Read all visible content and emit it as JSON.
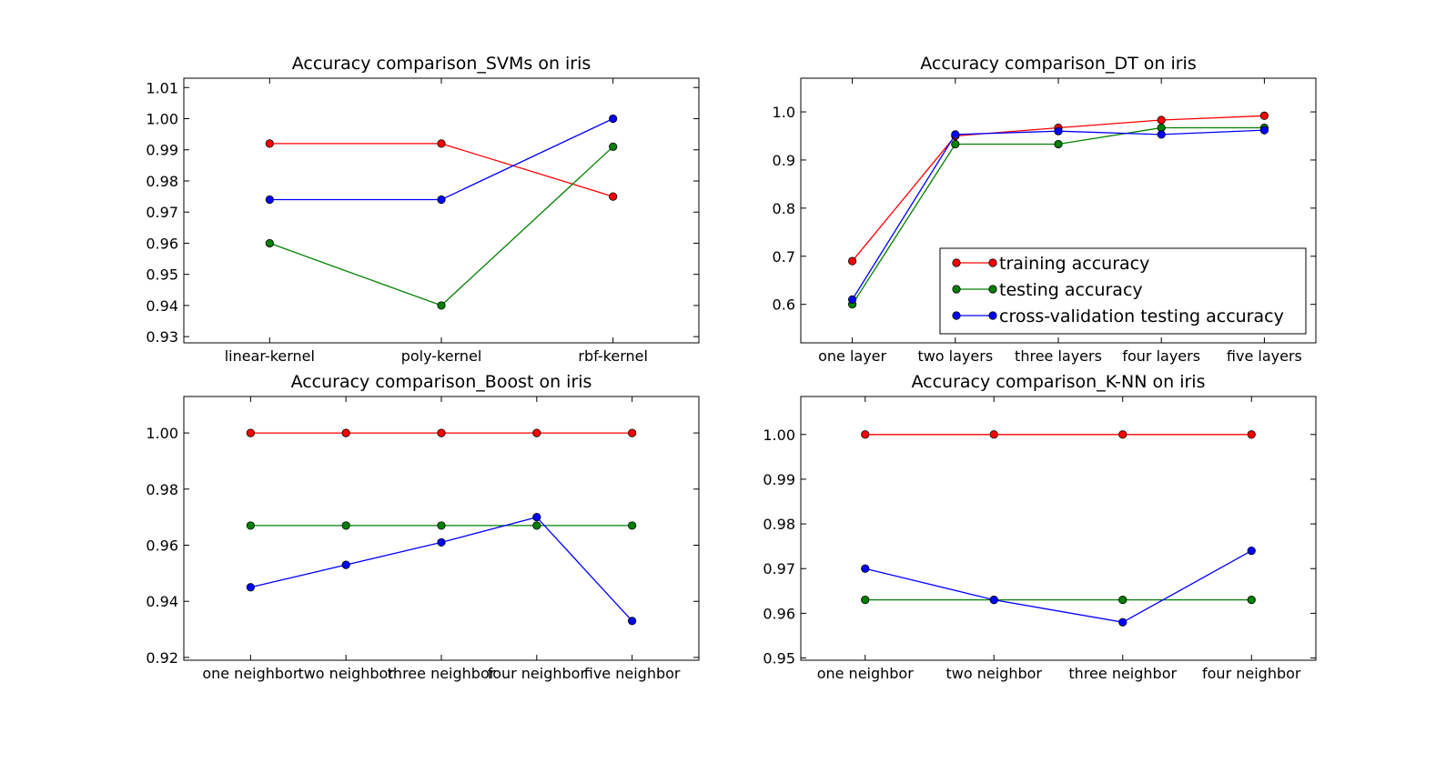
{
  "chart_data": [
    {
      "type": "line",
      "title": "Accuracy comparison_SVMs on iris",
      "categories": [
        "linear-kernel",
        "poly-kernel",
        "rbf-kernel"
      ],
      "ylim": [
        0.928,
        1.013
      ],
      "yticks": [
        "0.93",
        "0.94",
        "0.95",
        "0.96",
        "0.97",
        "0.98",
        "0.99",
        "1.00",
        "1.01"
      ],
      "series": [
        {
          "key": "training",
          "color": "#ff0000",
          "values": [
            0.992,
            0.992,
            0.975
          ]
        },
        {
          "key": "testing",
          "color": "#008000",
          "values": [
            0.96,
            0.94,
            0.991
          ]
        },
        {
          "key": "cv",
          "color": "#0000ff",
          "values": [
            0.974,
            0.974,
            1.0
          ]
        }
      ]
    },
    {
      "type": "line",
      "title": "Accuracy comparison_DT on iris",
      "categories": [
        "one layer",
        "two layers",
        "three layers",
        "four layers",
        "five layers"
      ],
      "ylim": [
        0.52,
        1.07
      ],
      "yticks": [
        "0.6",
        "0.7",
        "0.8",
        "0.9",
        "1.0"
      ],
      "series": [
        {
          "key": "training",
          "color": "#ff0000",
          "values": [
            0.69,
            0.95,
            0.967,
            0.983,
            0.992
          ]
        },
        {
          "key": "testing",
          "color": "#008000",
          "values": [
            0.6,
            0.933,
            0.933,
            0.967,
            0.967
          ]
        },
        {
          "key": "cv",
          "color": "#0000ff",
          "values": [
            0.61,
            0.953,
            0.96,
            0.953,
            0.962
          ]
        }
      ],
      "legend": {
        "placement": "lower-right",
        "entries": [
          {
            "label": "training accuracy",
            "color": "#ff0000"
          },
          {
            "label": "testing accuracy",
            "color": "#008000"
          },
          {
            "label": "cross-validation testing accuracy",
            "color": "#0000ff"
          }
        ]
      }
    },
    {
      "type": "line",
      "title": "Accuracy comparison_Boost on iris",
      "categories": [
        "one neighbor",
        "two neighbor",
        "three neighbor",
        "four neighbor",
        "five neighbor"
      ],
      "ylim": [
        0.919,
        1.013
      ],
      "yticks": [
        "0.92",
        "0.94",
        "0.96",
        "0.98",
        "1.00"
      ],
      "series": [
        {
          "key": "training",
          "color": "#ff0000",
          "values": [
            1.0,
            1.0,
            1.0,
            1.0,
            1.0
          ]
        },
        {
          "key": "testing",
          "color": "#008000",
          "values": [
            0.967,
            0.967,
            0.967,
            0.967,
            0.967
          ]
        },
        {
          "key": "cv",
          "color": "#0000ff",
          "values": [
            0.945,
            0.953,
            0.961,
            0.97,
            0.933
          ]
        }
      ]
    },
    {
      "type": "line",
      "title": "Accuracy comparison_K-NN on iris",
      "categories": [
        "one neighbor",
        "two neighbor",
        "three neighbor",
        "four neighbor"
      ],
      "ylim": [
        0.9495,
        1.0085
      ],
      "yticks": [
        "0.95",
        "0.96",
        "0.97",
        "0.98",
        "0.99",
        "1.00"
      ],
      "series": [
        {
          "key": "training",
          "color": "#ff0000",
          "values": [
            1.0,
            1.0,
            1.0,
            1.0
          ]
        },
        {
          "key": "testing",
          "color": "#008000",
          "values": [
            0.963,
            0.963,
            0.963,
            0.963
          ]
        },
        {
          "key": "cv",
          "color": "#0000ff",
          "values": [
            0.97,
            0.963,
            0.958,
            0.974
          ]
        }
      ]
    }
  ]
}
